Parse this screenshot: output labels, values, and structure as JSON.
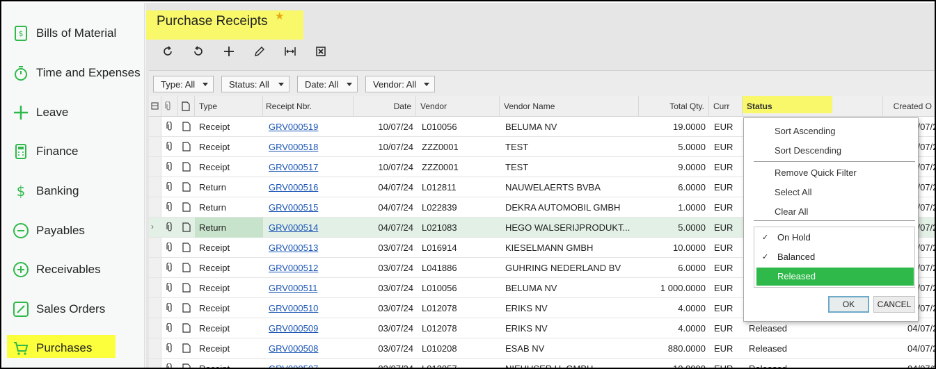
{
  "sidebar": {
    "items": [
      {
        "label": "Bills of Material",
        "icon": "bill-of-material-icon"
      },
      {
        "label": "Time and Expenses",
        "icon": "stopwatch-icon"
      },
      {
        "label": "Leave",
        "icon": "plus-icon"
      },
      {
        "label": "Finance",
        "icon": "calculator-icon"
      },
      {
        "label": "Banking",
        "icon": "dollar-icon"
      },
      {
        "label": "Payables",
        "icon": "minus-circle-icon"
      },
      {
        "label": "Receivables",
        "icon": "plus-circle-icon"
      },
      {
        "label": "Sales Orders",
        "icon": "pencil-box-icon"
      },
      {
        "label": "Purchases",
        "icon": "cart-icon"
      }
    ],
    "active": "Purchases"
  },
  "header": {
    "title": "Purchase Receipts",
    "favorite": "★"
  },
  "toolbar": {
    "icons": [
      "refresh-icon",
      "undo-icon",
      "add-icon",
      "edit-icon",
      "fit-columns-icon",
      "export-excel-icon"
    ]
  },
  "filters": [
    "Type: All",
    "Status: All",
    "Date: All",
    "Vendor: All"
  ],
  "columns": {
    "type": "Type",
    "receipt": "Receipt Nbr.",
    "date": "Date",
    "vendor": "Vendor",
    "vendor_name": "Vendor Name",
    "qty": "Total Qty.",
    "curr": "Curr",
    "status": "Status",
    "created": "Created O"
  },
  "rows": [
    {
      "type": "Receipt",
      "nbr": "GRV000519",
      "date": "10/07/24",
      "vendor": "L010056",
      "name": "BELUMA NV",
      "qty": "19.0000",
      "curr": "EUR",
      "status": "",
      "created": "04/07/2"
    },
    {
      "type": "Receipt",
      "nbr": "GRV000518",
      "date": "10/07/24",
      "vendor": "ZZZ0001",
      "name": "TEST",
      "qty": "5.0000",
      "curr": "EUR",
      "status": "",
      "created": "04/07/2"
    },
    {
      "type": "Receipt",
      "nbr": "GRV000517",
      "date": "10/07/24",
      "vendor": "ZZZ0001",
      "name": "TEST",
      "qty": "9.0000",
      "curr": "EUR",
      "status": "",
      "created": "04/07/2"
    },
    {
      "type": "Return",
      "nbr": "GRV000516",
      "date": "04/07/24",
      "vendor": "L012811",
      "name": "NAUWELAERTS BVBA",
      "qty": "6.0000",
      "curr": "EUR",
      "status": "",
      "created": "04/07/2"
    },
    {
      "type": "Return",
      "nbr": "GRV000515",
      "date": "04/07/24",
      "vendor": "L022839",
      "name": "DEKRA AUTOMOBIL GMBH",
      "qty": "1.0000",
      "curr": "EUR",
      "status": "",
      "created": "04/07/2"
    },
    {
      "type": "Return",
      "nbr": "GRV000514",
      "date": "04/07/24",
      "vendor": "L021083",
      "name": "HEGO WALSERIJPRODUKT...",
      "qty": "5.0000",
      "curr": "EUR",
      "status": "",
      "created": "04/07/2"
    },
    {
      "type": "Receipt",
      "nbr": "GRV000513",
      "date": "03/07/24",
      "vendor": "L016914",
      "name": "KIESELMANN GMBH",
      "qty": "10.0000",
      "curr": "EUR",
      "status": "",
      "created": "04/07/2"
    },
    {
      "type": "Receipt",
      "nbr": "GRV000512",
      "date": "03/07/24",
      "vendor": "L041886",
      "name": "GUHRING NEDERLAND BV",
      "qty": "6.0000",
      "curr": "EUR",
      "status": "",
      "created": "04/07/2"
    },
    {
      "type": "Receipt",
      "nbr": "GRV000511",
      "date": "03/07/24",
      "vendor": "L010056",
      "name": "BELUMA NV",
      "qty": "1 000.0000",
      "curr": "EUR",
      "status": "",
      "created": "04/07/2"
    },
    {
      "type": "Receipt",
      "nbr": "GRV000510",
      "date": "03/07/24",
      "vendor": "L012078",
      "name": "ERIKS NV",
      "qty": "4.0000",
      "curr": "EUR",
      "status": "",
      "created": "04/07/2"
    },
    {
      "type": "Receipt",
      "nbr": "GRV000509",
      "date": "03/07/24",
      "vendor": "L012078",
      "name": "ERIKS NV",
      "qty": "4.0000",
      "curr": "EUR",
      "status": "Released",
      "created": "04/07/2"
    },
    {
      "type": "Receipt",
      "nbr": "GRV000508",
      "date": "03/07/24",
      "vendor": "L010208",
      "name": "ESAB NV",
      "qty": "880.0000",
      "curr": "EUR",
      "status": "Released",
      "created": "04/07/2"
    },
    {
      "type": "Receipt",
      "nbr": "GRV000507",
      "date": "03/07/24",
      "vendor": "L013057",
      "name": "NIEHUSER U. GMBH",
      "qty": "10.0000",
      "curr": "EUR",
      "status": "Released",
      "created": "04/07/2"
    }
  ],
  "selected_row": 5,
  "dropdown": {
    "sort_asc": "Sort Ascending",
    "sort_desc": "Sort Descending",
    "remove_filter": "Remove Quick Filter",
    "select_all": "Select All",
    "clear_all": "Clear All",
    "options": [
      {
        "label": "On Hold",
        "checked": true
      },
      {
        "label": "Balanced",
        "checked": true
      },
      {
        "label": "Released",
        "checked": false,
        "highlighted": true
      }
    ],
    "ok": "OK",
    "cancel": "CANCEL"
  },
  "colors": {
    "accent": "#2fb94a",
    "highlight": "#f8f86a",
    "link": "#1a55b5",
    "selected_row": "#e3f0e6"
  }
}
